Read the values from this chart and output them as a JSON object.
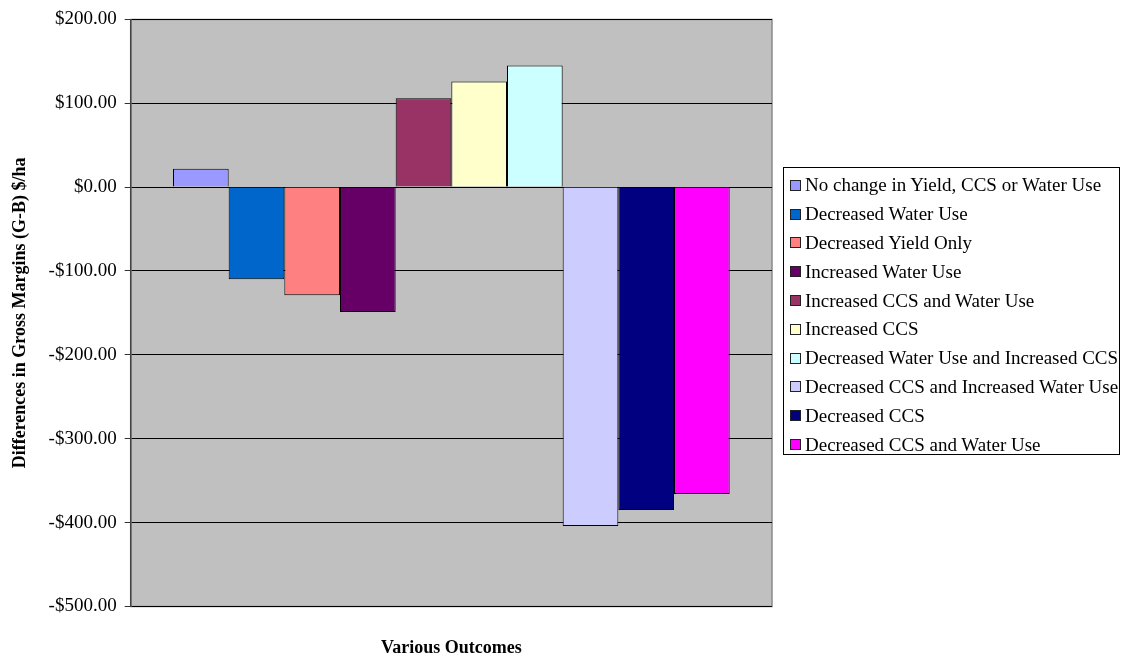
{
  "chart_data": {
    "type": "bar",
    "xlabel": "Various Outcomes",
    "ylabel": "Differences in Gross Margins (G-B) $/ha",
    "categories": [
      null
    ],
    "series": [
      {
        "name": "No change in Yield, CCS or Water Use",
        "color": "#9999ff",
        "values": [
          22
        ]
      },
      {
        "name": "Decreased Water Use",
        "color": "#0066cc",
        "values": [
          -110
        ]
      },
      {
        "name": "Decreased Yield Only",
        "color": "#ff8080",
        "values": [
          -129
        ]
      },
      {
        "name": "Increased Water Use",
        "color": "#660066",
        "values": [
          -149
        ]
      },
      {
        "name": "Increased CCS and Water Use",
        "color": "#993366",
        "values": [
          106
        ]
      },
      {
        "name": "Increased CCS",
        "color": "#ffffcc",
        "values": [
          126
        ]
      },
      {
        "name": "Decreased Water Use and Increased CCS",
        "color": "#ccffff",
        "values": [
          145
        ]
      },
      {
        "name": "Decreased CCS and Increased Water Use",
        "color": "#ccccff",
        "values": [
          -404
        ]
      },
      {
        "name": "Decreased CCS",
        "color": "#000080",
        "values": [
          -385
        ]
      },
      {
        "name": "Decreased CCS and Water Use",
        "color": "#ff00ff",
        "values": [
          -366
        ]
      }
    ],
    "ylim": [
      -500,
      200
    ],
    "yticks": [
      {
        "value": -500,
        "label": "-$500.00"
      },
      {
        "value": -400,
        "label": "-$400.00"
      },
      {
        "value": -300,
        "label": "-$300.00"
      },
      {
        "value": -200,
        "label": "-$200.00"
      },
      {
        "value": -100,
        "label": "-$100.00"
      },
      {
        "value": 0,
        "label": "$0.00"
      },
      {
        "value": 100,
        "label": "$100.00"
      },
      {
        "value": 200,
        "label": "$200.00"
      }
    ],
    "grid": "y",
    "legend": "right"
  }
}
